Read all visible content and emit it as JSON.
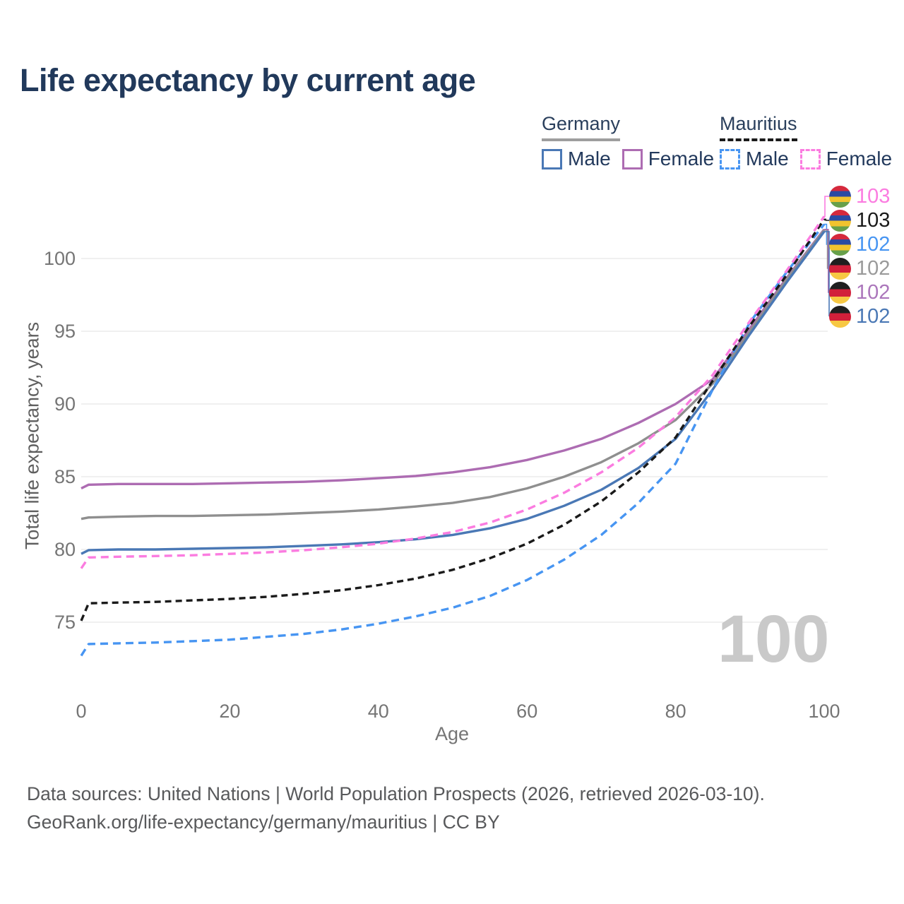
{
  "title": "Life expectancy by current age",
  "legend": {
    "germany": {
      "label": "Germany",
      "male": "Male",
      "female": "Female"
    },
    "mauritius": {
      "label": "Mauritius",
      "male": "Male",
      "female": "Female"
    }
  },
  "axes": {
    "y_title": "Total life expectancy, years",
    "x_title": "Age"
  },
  "watermark": "100",
  "footer": {
    "line1": "Data sources: United Nations | World Population Prospects (2026, retrieved 2026-03-10).",
    "line2": "GeoRank.org/life-expectancy/germany/mauritius | CC BY"
  },
  "colors": {
    "title_text": "#21395b",
    "legend_text": "#22395c",
    "tick_text": "#757575",
    "axis_title_text": "#5f5f5f",
    "footer_text": "#58595b",
    "gridline": "#ebebeb",
    "watermark_text": "#c9c9c9",
    "flags": {
      "mauritius": [
        "#d5293d",
        "#2b4aa3",
        "#f2c32f",
        "#68a04a"
      ],
      "germany": [
        "#1f1f1f",
        "#d2203a",
        "#f7c843"
      ]
    }
  },
  "chart_data": {
    "type": "line",
    "title": "Life expectancy by current age",
    "xlabel": "Age",
    "ylabel": "Total life expectancy, years",
    "x_ticks": [
      0,
      20,
      40,
      60,
      80,
      100
    ],
    "y_ticks": [
      75,
      80,
      85,
      90,
      95,
      100
    ],
    "xlim": [
      0,
      100
    ],
    "ylim": [
      71.5,
      104
    ],
    "grid": "horizontal",
    "legend_position": "top-right",
    "x": [
      0,
      1,
      5,
      10,
      15,
      20,
      25,
      30,
      35,
      40,
      45,
      50,
      55,
      60,
      65,
      70,
      75,
      80,
      85,
      90,
      95,
      100
    ],
    "series": [
      {
        "key": "de_female",
        "name": "Germany Female",
        "color": "#ad6cb2",
        "dash": null,
        "values": [
          84.2,
          84.45,
          84.5,
          84.5,
          84.5,
          84.55,
          84.6,
          84.65,
          84.75,
          84.9,
          85.05,
          85.3,
          85.65,
          86.15,
          86.8,
          87.6,
          88.7,
          90.0,
          91.7,
          95.2,
          98.7,
          102.0
        ]
      },
      {
        "key": "de_both",
        "name": "Germany Both sexes",
        "color": "#8f8f8f",
        "dash": null,
        "values": [
          82.1,
          82.2,
          82.25,
          82.3,
          82.3,
          82.35,
          82.4,
          82.5,
          82.6,
          82.75,
          82.95,
          83.2,
          83.6,
          84.2,
          85.0,
          86.0,
          87.3,
          88.9,
          91.4,
          95.0,
          98.6,
          101.95
        ]
      },
      {
        "key": "de_male",
        "name": "Germany Male",
        "color": "#4a78b5",
        "dash": null,
        "values": [
          79.7,
          79.95,
          80.0,
          80.0,
          80.05,
          80.1,
          80.15,
          80.25,
          80.35,
          80.5,
          80.7,
          81.0,
          81.45,
          82.1,
          83.0,
          84.1,
          85.6,
          87.6,
          91.0,
          94.8,
          98.4,
          101.85
        ]
      },
      {
        "key": "mu_male",
        "name": "Mauritius Male",
        "color": "#4795f2",
        "dash": "11 7",
        "values": [
          72.7,
          73.5,
          73.55,
          73.6,
          73.7,
          73.8,
          74.0,
          74.2,
          74.5,
          74.9,
          75.4,
          76.0,
          76.8,
          77.9,
          79.3,
          81.0,
          83.2,
          85.9,
          91.0,
          95.6,
          99.1,
          102.35
        ]
      },
      {
        "key": "mu_both",
        "name": "Mauritius Both sexes",
        "color": "#1a1a1a",
        "dash": "9 6",
        "values": [
          75.1,
          76.3,
          76.35,
          76.4,
          76.5,
          76.6,
          76.75,
          76.95,
          77.2,
          77.55,
          78.0,
          78.6,
          79.4,
          80.4,
          81.7,
          83.3,
          85.3,
          87.7,
          91.6,
          95.4,
          98.9,
          102.7
        ]
      },
      {
        "key": "mu_female",
        "name": "Mauritius Female",
        "color": "#fb7ce0",
        "dash": "11 7",
        "values": [
          78.7,
          79.45,
          79.5,
          79.55,
          79.6,
          79.7,
          79.8,
          79.95,
          80.15,
          80.4,
          80.75,
          81.2,
          81.85,
          82.75,
          83.9,
          85.3,
          87.0,
          89.1,
          92.0,
          95.7,
          99.2,
          102.9
        ]
      }
    ],
    "end_labels": [
      {
        "series_key": "mu_female",
        "label": "103",
        "flag": "mauritius",
        "color": "#fb7ce0"
      },
      {
        "series_key": "mu_both",
        "label": "103",
        "flag": "mauritius",
        "color": "#1a1a1a"
      },
      {
        "series_key": "mu_male",
        "label": "102",
        "flag": "mauritius",
        "color": "#4795f2"
      },
      {
        "series_key": "de_both",
        "label": "102",
        "flag": "germany",
        "color": "#9a9a9a"
      },
      {
        "series_key": "de_female",
        "label": "102",
        "flag": "germany",
        "color": "#ab76bb"
      },
      {
        "series_key": "de_male",
        "label": "102",
        "flag": "germany",
        "color": "#4a78b5"
      }
    ]
  }
}
